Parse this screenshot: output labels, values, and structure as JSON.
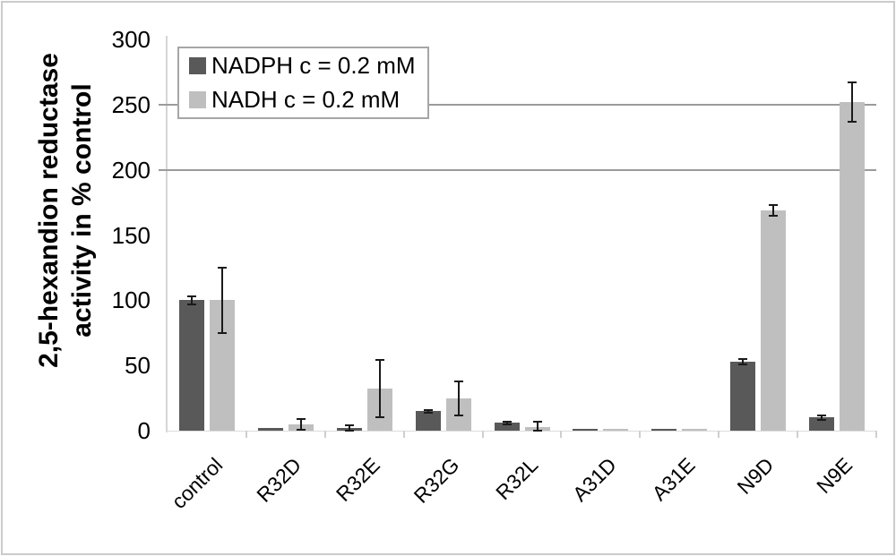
{
  "figure": {
    "background": "#ffffff",
    "frame_border_color": "#cbcbcb",
    "gridline_color": "#9b9b9b",
    "axis_line_color": "#d6d6d6",
    "error_bar_color": "#1a1a1a"
  },
  "chart_data": {
    "type": "bar",
    "title": "",
    "ylabel_line1": "2,5-hexandion reductase",
    "ylabel_line2": "activity in % control",
    "xlabel": "",
    "categories": [
      "control",
      "R32D",
      "R32E",
      "R32G",
      "R32L",
      "A31D",
      "A31E",
      "N9D",
      "N9E"
    ],
    "series": [
      {
        "name": "NADPH c = 0.2 mM",
        "color": "#595959",
        "values": [
          100,
          2,
          2,
          15,
          6,
          1,
          1,
          53,
          10
        ],
        "errors": [
          3,
          0,
          2,
          1,
          1,
          0,
          0,
          2,
          2
        ]
      },
      {
        "name": "NADH c = 0.2 mM",
        "color": "#BFBFBF",
        "values": [
          100,
          5,
          32,
          25,
          3,
          1,
          1,
          169,
          252
        ],
        "errors": [
          25,
          4,
          22,
          13,
          4,
          0,
          0,
          4,
          15
        ]
      }
    ],
    "ylim": [
      0,
      300
    ],
    "yticks": [
      300,
      250,
      200,
      150,
      100,
      50,
      0
    ],
    "gridlines_at": [
      250,
      200
    ],
    "legend_position": "top-left-inside",
    "error_bars": true
  }
}
